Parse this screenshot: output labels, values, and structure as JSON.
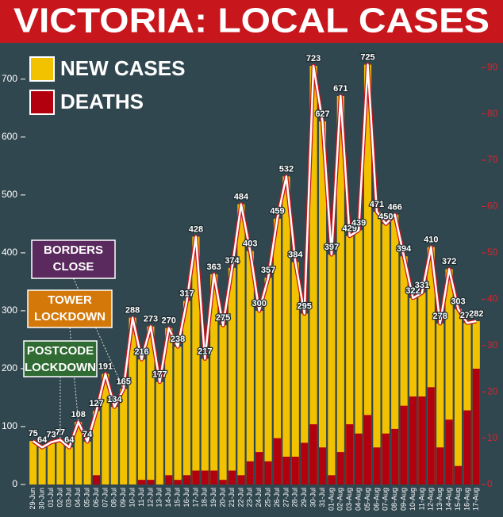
{
  "chart_data": {
    "type": "bar",
    "title": "VICTORIA: LOCAL CASES",
    "categories": [
      "29-Jun",
      "30-Jun",
      "01-Jul",
      "02-Jul",
      "03-Jul",
      "04-Jul",
      "05-Jul",
      "06-Jul",
      "07-Jul",
      "08-Jul",
      "09-Jul",
      "10-Jul",
      "11-Jul",
      "12-Jul",
      "13-Jul",
      "14-Jul",
      "15-Jul",
      "16-Jul",
      "17-Jul",
      "18-Jul",
      "19-Jul",
      "20-Jul",
      "21-Jul",
      "22-Jul",
      "23-Jul",
      "24-Jul",
      "25-Jul",
      "26-Jul",
      "27-Jul",
      "28-Jul",
      "29-Jul",
      "30-Jul",
      "31-Jul",
      "01-Aug",
      "02-Aug",
      "03-Aug",
      "04-Aug",
      "05-Aug",
      "06-Aug",
      "07-Aug",
      "08-Aug",
      "09-Aug",
      "10-Aug",
      "11-Aug",
      "12-Aug",
      "13-Aug",
      "14-Aug",
      "15-Aug",
      "16-Aug",
      "17-Aug"
    ],
    "series": [
      {
        "name": "NEW CASES",
        "color": "#f2c200",
        "values": [
          75,
          64,
          73,
          77,
          64,
          108,
          74,
          127,
          191,
          134,
          165,
          288,
          216,
          273,
          177,
          270,
          238,
          317,
          428,
          217,
          363,
          275,
          374,
          484,
          403,
          300,
          357,
          459,
          532,
          384,
          295,
          723,
          627,
          397,
          671,
          429,
          439,
          725,
          471,
          450,
          466,
          394,
          322,
          331,
          410,
          278,
          372,
          303,
          279,
          282
        ]
      },
      {
        "name": "DEATHS",
        "color": "#b3000e",
        "axis": "y2",
        "values": [
          0,
          0,
          0,
          0,
          0,
          0,
          0,
          2,
          0,
          0,
          0,
          0,
          1,
          1,
          0,
          2,
          1,
          2,
          3,
          3,
          3,
          1,
          3,
          2,
          5,
          7,
          5,
          10,
          6,
          6,
          9,
          13,
          8,
          2,
          7,
          13,
          11,
          15,
          8,
          11,
          12,
          17,
          19,
          19,
          21,
          8,
          14,
          4,
          16,
          25
        ]
      }
    ],
    "ylim": [
      0,
      760
    ],
    "yticks": [
      0,
      100,
      200,
      300,
      400,
      500,
      600,
      700
    ],
    "y2lim": [
      0,
      95
    ],
    "y2ticks": [
      0,
      10,
      20,
      30,
      40,
      50,
      60,
      70,
      80,
      90
    ],
    "annotations": [
      {
        "lines": [
          "BORDERS",
          "CLOSE"
        ],
        "color": "#5a2a5e"
      },
      {
        "lines": [
          "TOWER",
          "LOCKDOWN"
        ],
        "color": "#d4780a"
      },
      {
        "lines": [
          "POSTCODE",
          "LOCKDOWN"
        ],
        "color": "#2f6b33"
      }
    ]
  }
}
